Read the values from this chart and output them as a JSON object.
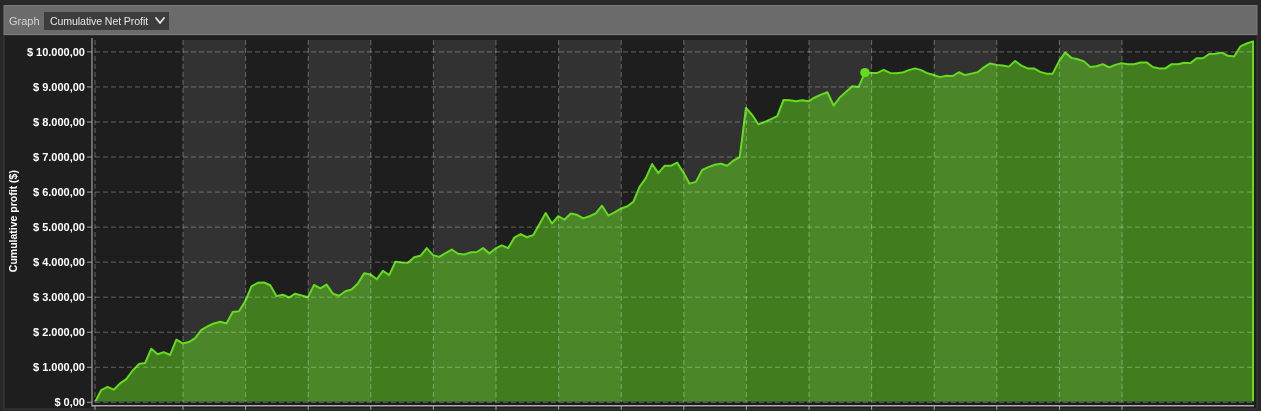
{
  "chart_data": {
    "type": "area",
    "title": "Cumulative Net Profit",
    "annotations": [
      "Graph"
    ],
    "ylabel": "Cumulative profit ($)",
    "categories": [
      null,
      null,
      null,
      null,
      null,
      null,
      null,
      null,
      null,
      null,
      null,
      null,
      null,
      null,
      null,
      null,
      null,
      null,
      null,
      null,
      null,
      null,
      null,
      null,
      null,
      null,
      null,
      null,
      null,
      null,
      null,
      null,
      null,
      null,
      null,
      null,
      null,
      null,
      null,
      null,
      null,
      null,
      null,
      null,
      null,
      null,
      null,
      null,
      null,
      null,
      null,
      null,
      null,
      null,
      null,
      null,
      null,
      null,
      null,
      null,
      null,
      null,
      null,
      null,
      null,
      null,
      null,
      null,
      null,
      null,
      null,
      null,
      null,
      null,
      null,
      null,
      null,
      null,
      null,
      null,
      null,
      null,
      null,
      null,
      null,
      null,
      null,
      null,
      null,
      null,
      null,
      null,
      null,
      null,
      null,
      null,
      null,
      null,
      null,
      null,
      null,
      null,
      null,
      null,
      null,
      null,
      null,
      null,
      null,
      null,
      null,
      null,
      null,
      null,
      null,
      null,
      null,
      null,
      null,
      null,
      null,
      null,
      null,
      null,
      null,
      null,
      null,
      null,
      null,
      null,
      null,
      null,
      null,
      null,
      null,
      null,
      null,
      null,
      null,
      null,
      null,
      null,
      null,
      null,
      null,
      null,
      null,
      null,
      null,
      null,
      null,
      null,
      null,
      null,
      null,
      null,
      null,
      null,
      null,
      null,
      null,
      null,
      null,
      null,
      null,
      null,
      null,
      null,
      null,
      null,
      null,
      null,
      null,
      null,
      null,
      null,
      null,
      null,
      null,
      null,
      null,
      null,
      null,
      null,
      null,
      null
    ],
    "series": [
      {
        "color": "#64dc1e",
        "values": [
          0,
          350,
          440,
          360,
          540,
          660,
          900,
          1090,
          1120,
          1530,
          1370,
          1430,
          1350,
          1790,
          1680,
          1720,
          1830,
          2070,
          2170,
          2250,
          2300,
          2250,
          2580,
          2600,
          2880,
          3310,
          3410,
          3420,
          3340,
          3030,
          3070,
          2990,
          3100,
          3050,
          3000,
          3350,
          3250,
          3360,
          3100,
          3040,
          3170,
          3220,
          3390,
          3680,
          3650,
          3510,
          3750,
          3630,
          4010,
          3990,
          3980,
          4140,
          4180,
          4400,
          4200,
          4150,
          4260,
          4360,
          4240,
          4220,
          4280,
          4290,
          4400,
          4250,
          4390,
          4480,
          4400,
          4700,
          4800,
          4710,
          4770,
          5080,
          5400,
          5100,
          5310,
          5210,
          5390,
          5350,
          5250,
          5310,
          5390,
          5610,
          5330,
          5420,
          5530,
          5590,
          5720,
          6150,
          6400,
          6800,
          6540,
          6750,
          6750,
          6840,
          6560,
          6240,
          6290,
          6630,
          6710,
          6780,
          6810,
          6750,
          6900,
          7000,
          8400,
          8200,
          7930,
          8000,
          8080,
          8170,
          8630,
          8620,
          8590,
          8620,
          8590,
          8700,
          8780,
          8850,
          8470,
          8700,
          8860,
          9020,
          9000,
          9410,
          9400,
          9400,
          9490,
          9400,
          9390,
          9410,
          9480,
          9530,
          9480,
          9390,
          9340,
          9280,
          9320,
          9310,
          9420,
          9340,
          9380,
          9420,
          9560,
          9670,
          9630,
          9610,
          9580,
          9740,
          9610,
          9530,
          9530,
          9430,
          9380,
          9380,
          9730,
          9980,
          9830,
          9790,
          9730,
          9570,
          9590,
          9650,
          9560,
          9630,
          9680,
          9650,
          9650,
          9700,
          9700,
          9570,
          9530,
          9530,
          9650,
          9650,
          9690,
          9680,
          9820,
          9820,
          9940,
          9950,
          9980,
          9890,
          9870,
          10160,
          10240,
          10300
        ]
      },
      {
        "type": "scatter",
        "color": "#64dc1e",
        "marker": "circle",
        "values": [
          null,
          null,
          null,
          null,
          null,
          null,
          null,
          null,
          null,
          null,
          null,
          null,
          null,
          null,
          null,
          null,
          null,
          null,
          null,
          null,
          null,
          null,
          null,
          null,
          null,
          null,
          null,
          null,
          null,
          null,
          null,
          null,
          null,
          null,
          null,
          null,
          null,
          null,
          null,
          null,
          null,
          null,
          null,
          null,
          null,
          null,
          null,
          null,
          null,
          null,
          null,
          null,
          null,
          null,
          null,
          null,
          null,
          null,
          null,
          null,
          null,
          null,
          null,
          null,
          null,
          null,
          null,
          null,
          null,
          null,
          null,
          null,
          null,
          null,
          null,
          null,
          null,
          null,
          null,
          null,
          null,
          null,
          null,
          null,
          null,
          null,
          null,
          null,
          null,
          null,
          null,
          null,
          null,
          null,
          null,
          null,
          null,
          null,
          null,
          null,
          null,
          null,
          null,
          null,
          null,
          null,
          null,
          null,
          null,
          null,
          null,
          null,
          null,
          null,
          null,
          null,
          null,
          null,
          null,
          null,
          null,
          null,
          null,
          9410,
          null,
          null,
          null,
          null,
          null,
          null,
          null,
          null,
          null,
          null,
          null,
          null,
          null,
          null,
          null,
          null,
          null,
          null,
          null,
          null,
          null,
          null,
          null,
          null,
          null,
          null,
          null,
          null,
          null,
          null,
          null,
          null,
          null,
          null,
          null,
          null,
          null,
          null,
          null,
          null,
          null,
          null,
          null,
          null,
          null,
          null,
          null,
          null,
          null,
          null,
          null,
          null,
          null,
          null,
          null,
          null,
          null,
          null,
          null,
          null,
          null,
          null
        ]
      }
    ],
    "ylim": [
      0,
      10340
    ],
    "yticks": [
      {
        "value": 0,
        "label": "$ 0,00"
      },
      {
        "value": 1000,
        "label": "$ 1.000,00"
      },
      {
        "value": 2000,
        "label": "$ 2.000,00"
      },
      {
        "value": 3000,
        "label": "$ 3.000,00"
      },
      {
        "value": 4000,
        "label": "$ 4.000,00"
      },
      {
        "value": 5000,
        "label": "$ 5.000,00"
      },
      {
        "value": 6000,
        "label": "$ 6.000,00"
      },
      {
        "value": 7000,
        "label": "$ 7.000,00"
      },
      {
        "value": 8000,
        "label": "$ 8.000,00"
      },
      {
        "value": 9000,
        "label": "$ 9.000,00"
      },
      {
        "value": 10000,
        "label": "$ 10.000,00"
      }
    ],
    "grid": true,
    "tick_labels": "y"
  }
}
